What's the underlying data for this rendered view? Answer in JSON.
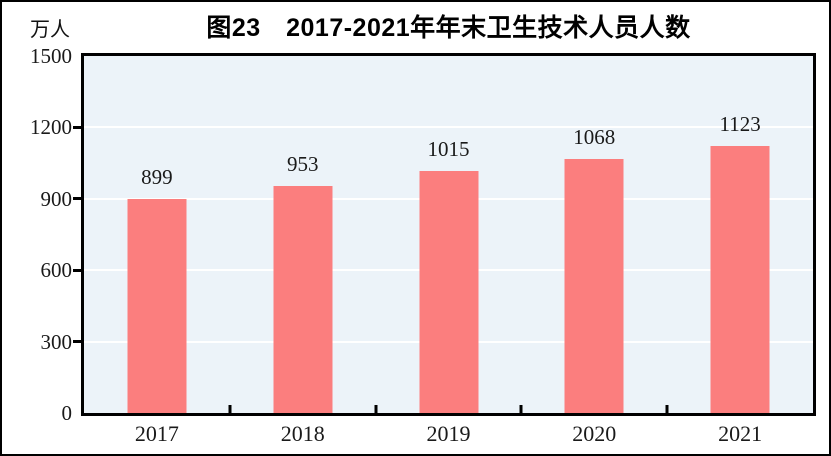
{
  "figure": {
    "title": "图23　2017-2021年年末卫生技术人员人数",
    "unit_label": "万人"
  },
  "chart_data": {
    "type": "bar",
    "title": "图23　2017-2021年年末卫生技术人员人数",
    "xlabel": "",
    "ylabel": "万人",
    "categories": [
      "2017",
      "2018",
      "2019",
      "2020",
      "2021"
    ],
    "values": [
      899,
      953,
      1015,
      1068,
      1123
    ],
    "data_labels": [
      "899",
      "953",
      "1015",
      "1068",
      "1123"
    ],
    "ylim": [
      0,
      1500
    ],
    "yticks": [
      0,
      300,
      600,
      900,
      1200,
      1500
    ],
    "grid": true,
    "legend_position": "none",
    "colors": {
      "bar": "#fb7e7e",
      "plot_background": "#ecf3f9",
      "gridline": "#ffffff",
      "axis": "#000000",
      "text": "#1a1a1a"
    }
  }
}
